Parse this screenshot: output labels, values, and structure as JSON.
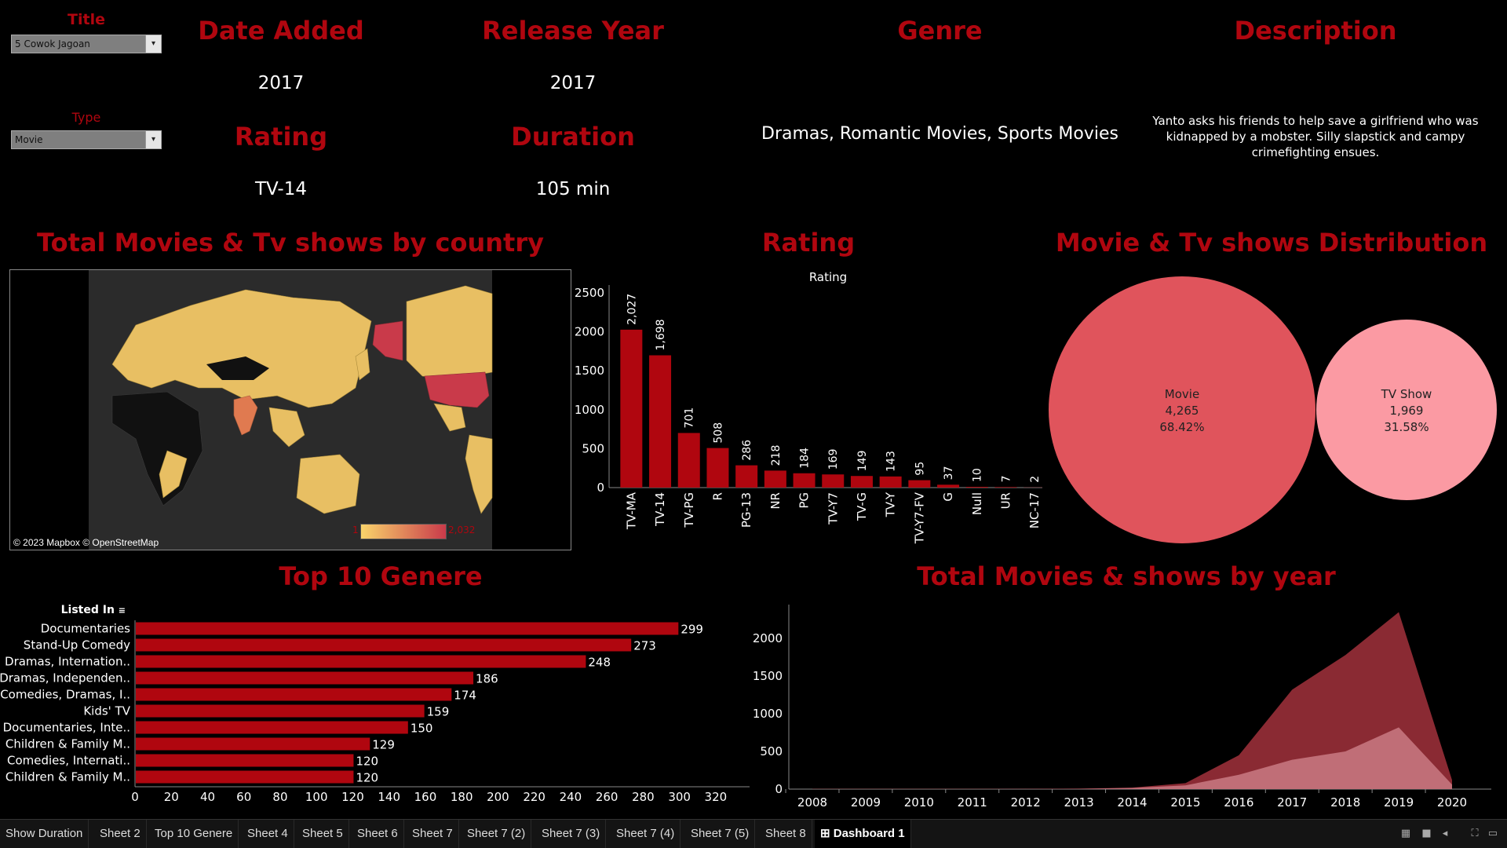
{
  "filters": {
    "title_label": "Title",
    "title_value": "5 Cowok Jagoan",
    "type_label": "Type",
    "type_value": "Movie"
  },
  "details": {
    "date_added_label": "Date Added",
    "date_added": "2017",
    "release_year_label": "Release Year",
    "release_year": "2017",
    "rating_label": "Rating",
    "rating": "TV-14",
    "duration_label": "Duration",
    "duration": "105 min",
    "genre_label": "Genre",
    "genre": "Dramas, Romantic Movies, Sports Movies",
    "description_label": "Description",
    "description": "Yanto asks his friends to help save a girlfriend who was kidnapped by a mobster. Silly slapstick and campy crimefighting ensues."
  },
  "map": {
    "title": "Total Movies & Tv shows by country",
    "attribution": "© 2023 Mapbox © OpenStreetMap",
    "legend_min": "1",
    "legend_max": "2,032",
    "colors": {
      "low": "#f9d46b",
      "high": "#c93a4a",
      "india": "#e07a50",
      "land": "#e8bf63",
      "nodata": "#111111",
      "ocean": "#2b2b2b"
    }
  },
  "rating_chart_title": "Rating",
  "distribution": {
    "title": "Movie & Tv shows Distribution",
    "items": [
      {
        "name": "Movie",
        "count": "4,265",
        "pct": "68.42%",
        "color": "#e0545c"
      },
      {
        "name": "TV Show",
        "count": "1,969",
        "pct": "31.58%",
        "color": "#fb9aa3"
      }
    ]
  },
  "genre_chart": {
    "title": "Top 10 Genere",
    "header": "Listed In"
  },
  "year_chart": {
    "title": "Total Movies & shows by year"
  },
  "tabs": [
    "Show Duration",
    "Sheet 2",
    "Top 10 Genere",
    "Sheet 4",
    "Sheet 5",
    "Sheet 6",
    "Sheet 7",
    "Sheet 7 (2)",
    "Sheet 7 (3)",
    "Sheet 7 (4)",
    "Sheet 7 (5)",
    "Sheet 8",
    "Dashboard 1"
  ],
  "active_tab": "Dashboard 1",
  "chart_data": [
    {
      "type": "bar",
      "title": "Rating",
      "subtitle": "Rating",
      "categories": [
        "TV-MA",
        "TV-14",
        "TV-PG",
        "R",
        "PG-13",
        "NR",
        "PG",
        "TV-Y7",
        "TV-G",
        "TV-Y",
        "TV-Y7-FV",
        "G",
        "Null",
        "UR",
        "NC-17"
      ],
      "values": [
        2027,
        1698,
        701,
        508,
        286,
        218,
        184,
        169,
        149,
        143,
        95,
        37,
        10,
        7,
        2
      ],
      "data_labels": [
        "2,027",
        "1,698",
        "701",
        "508",
        "286",
        "218",
        "184",
        "169",
        "149",
        "143",
        "95",
        "37",
        "10",
        "7",
        "2"
      ],
      "yticks": [
        0,
        500,
        1000,
        1500,
        2000,
        2500
      ],
      "ylim": [
        0,
        2600
      ],
      "color": "#b0060f"
    },
    {
      "type": "bar",
      "orientation": "horizontal",
      "title": "Top 10 Genere",
      "categories": [
        "Documentaries",
        "Stand-Up Comedy",
        "Dramas, Internation..",
        "Dramas, Independen..",
        "Comedies, Dramas, I..",
        "Kids' TV",
        "Documentaries, Inte..",
        "Children & Family M..",
        "Comedies, Internati..",
        "Children & Family M.."
      ],
      "values": [
        299,
        273,
        248,
        186,
        174,
        159,
        150,
        129,
        120,
        120
      ],
      "xticks": [
        0,
        20,
        40,
        60,
        80,
        100,
        120,
        140,
        160,
        180,
        200,
        220,
        240,
        260,
        280,
        300,
        320
      ],
      "xlim": [
        0,
        330
      ],
      "color": "#b0060f"
    },
    {
      "type": "area",
      "title": "Total Movies & shows by year",
      "x": [
        2008,
        2009,
        2010,
        2011,
        2012,
        2013,
        2014,
        2015,
        2016,
        2017,
        2018,
        2019,
        2020
      ],
      "series": [
        {
          "values": [
            2,
            2,
            2,
            3,
            3,
            6,
            20,
            80,
            450,
            1320,
            1780,
            2350,
            120
          ],
          "color": "#8a2a33"
        },
        {
          "values": [
            1,
            1,
            1,
            1,
            2,
            4,
            15,
            50,
            190,
            390,
            500,
            820,
            60
          ],
          "color": "#c97a84"
        }
      ],
      "yticks": [
        0,
        500,
        1000,
        1500,
        2000
      ],
      "ylim": [
        0,
        2450
      ]
    }
  ]
}
